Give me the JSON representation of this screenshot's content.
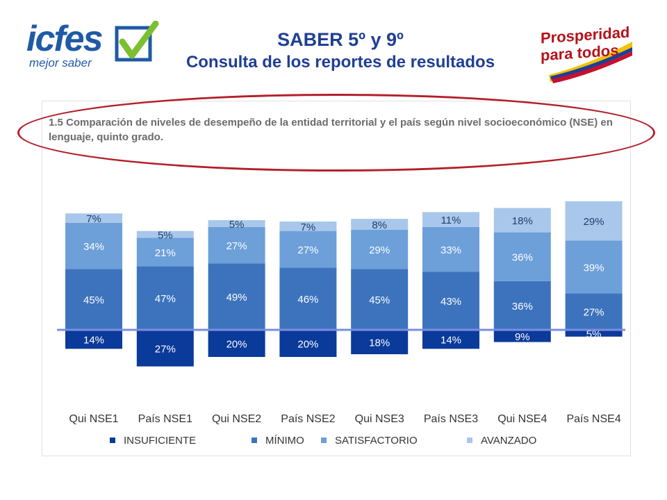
{
  "header": {
    "title": "SABER 5º y 9º",
    "subtitle": "Consulta de los reportes de resultados",
    "logo_left_text": "icfes",
    "logo_left_sub": "mejor saber",
    "logo_right_line1": "Prosperidad",
    "logo_right_line2": "para todos"
  },
  "colors": {
    "insuficiente": "#0a3a9a",
    "minimo": "#3d73bd",
    "satisfactorio": "#6d9fd9",
    "avanzado": "#a8c7ea",
    "baseline": "#7b8ee0",
    "oval": "#b3202a",
    "title": "#1f3f93"
  },
  "chart_data": {
    "type": "bar",
    "title": "1.5 Comparación de niveles de desempeño de la entidad territorial y el país según nivel socioeconómico (NSE) en lenguaje, quinto grado.",
    "categories": [
      "Qui NSE1",
      "País NSE1",
      "Qui NSE2",
      "País NSE2",
      "Qui NSE3",
      "País NSE3",
      "Qui NSE4",
      "País  NSE4"
    ],
    "series": [
      {
        "name": "INSUFICIENTE",
        "values": [
          14,
          27,
          20,
          20,
          18,
          14,
          9,
          5
        ],
        "labels": [
          "14%",
          "27%",
          "20%",
          "20%",
          "18%",
          "14%",
          "9%",
          "5%"
        ]
      },
      {
        "name": "MÍNIMO",
        "values": [
          45,
          47,
          49,
          46,
          45,
          43,
          36,
          27
        ],
        "labels": [
          "45%",
          "47%",
          "49%",
          "46%",
          "45%",
          "43%",
          "36%",
          "27%"
        ]
      },
      {
        "name": "SATISFACTORIO",
        "values": [
          34,
          21,
          27,
          27,
          29,
          33,
          36,
          39
        ],
        "labels": [
          "34%",
          "21%",
          "27%",
          "27%",
          "29%",
          "33%",
          "36%",
          "39%"
        ]
      },
      {
        "name": "AVANZADO",
        "values": [
          7,
          5,
          5,
          7,
          8,
          11,
          18,
          29
        ],
        "labels": [
          "7%",
          "5%",
          "5%",
          "7%",
          "8%",
          "11%",
          "18%",
          "29%"
        ]
      }
    ],
    "stacking": "diverging: INSUFICIENTE below baseline, others stacked above",
    "legend_placement": "bottom",
    "grid": false
  }
}
